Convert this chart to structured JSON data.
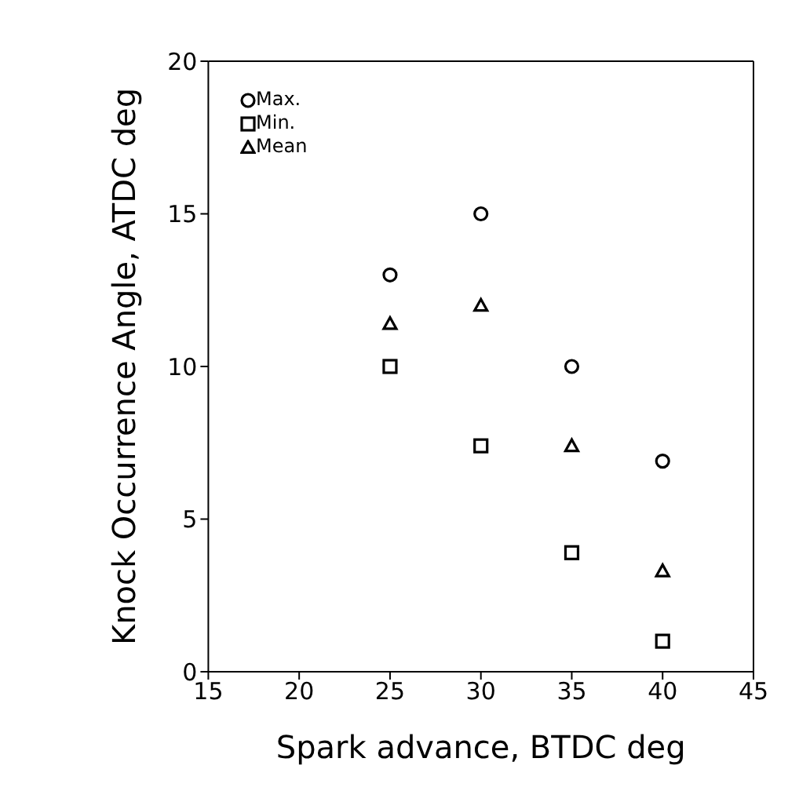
{
  "chart_data": {
    "type": "scatter",
    "xlabel": "Spark advance, BTDC deg",
    "ylabel": "Knock Occurrence Angle, ATDC deg",
    "x": [
      25,
      30,
      35,
      40
    ],
    "series": [
      {
        "name": "Max.",
        "color": "#000000",
        "marker": "circle",
        "values": [
          13,
          15,
          10,
          6.9
        ]
      },
      {
        "name": "Min.",
        "color": "#000000",
        "marker": "square",
        "values": [
          10,
          7.4,
          3.9,
          1
        ]
      },
      {
        "name": "Mean",
        "color": "#000000",
        "marker": "triangle",
        "values": [
          11.4,
          12,
          7.4,
          3.3
        ]
      }
    ],
    "xlim": [
      15,
      45
    ],
    "xticks": [
      15,
      20,
      25,
      30,
      35,
      40,
      45
    ],
    "ylim": [
      0,
      20
    ],
    "yticks": [
      0,
      5,
      10,
      15,
      20
    ],
    "grid": false,
    "legend": "top left"
  }
}
